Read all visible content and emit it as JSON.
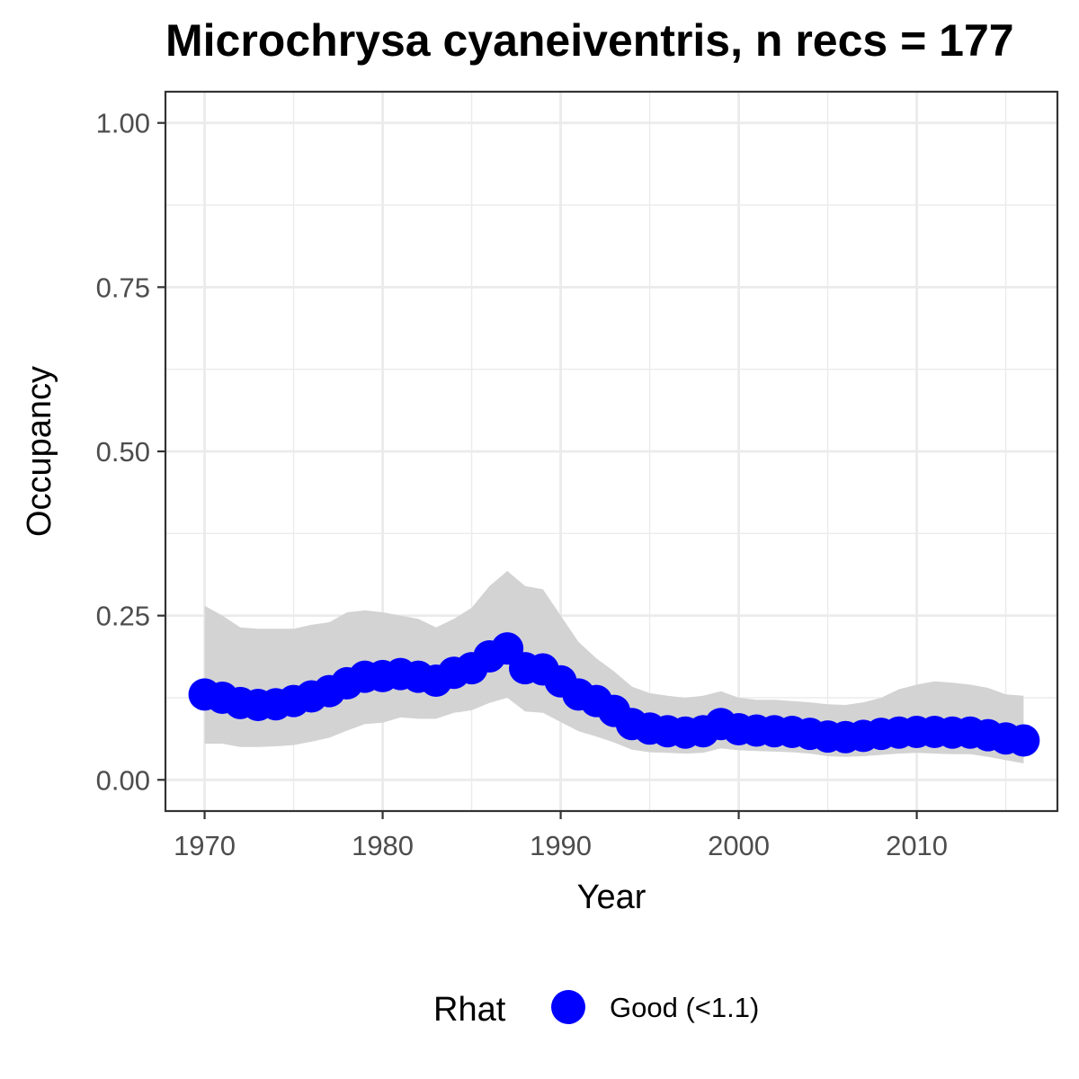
{
  "chart_data": {
    "type": "line",
    "title": "Microchrysa cyaneiventris, n recs = 177",
    "xlabel": "Year",
    "ylabel": "Occupancy",
    "xlim": [
      1967.8,
      2017.9
    ],
    "ylim": [
      -0.0475,
      1.0475
    ],
    "x_ticks": [
      1970,
      1980,
      1990,
      2000,
      2010
    ],
    "x_tick_labels": [
      "1970",
      "1980",
      "1990",
      "2000",
      "2010"
    ],
    "y_ticks": [
      0,
      0.25,
      0.5,
      0.75,
      1.0
    ],
    "y_tick_labels": [
      "0.00",
      "0.25",
      "0.50",
      "0.75",
      "1.00"
    ],
    "grid": true,
    "legend": {
      "title": "Rhat",
      "position": "bottom",
      "items": [
        {
          "label": "Good (<1.1)",
          "color": "#0000ff"
        }
      ]
    },
    "colors": {
      "points": "#0000ff",
      "ribbon": "#d3d3d3",
      "grid": "#ebebeb",
      "border": "#333333"
    },
    "x": [
      1970,
      1971,
      1972,
      1973,
      1974,
      1975,
      1976,
      1977,
      1978,
      1979,
      1980,
      1981,
      1982,
      1983,
      1984,
      1985,
      1986,
      1987,
      1988,
      1989,
      1990,
      1991,
      1992,
      1993,
      1994,
      1995,
      1996,
      1997,
      1998,
      1999,
      2000,
      2001,
      2002,
      2003,
      2004,
      2005,
      2006,
      2007,
      2008,
      2009,
      2010,
      2011,
      2012,
      2013,
      2014,
      2015,
      2016
    ],
    "series": [
      {
        "values": [
          0.13,
          0.125,
          0.117,
          0.114,
          0.115,
          0.12,
          0.127,
          0.135,
          0.147,
          0.157,
          0.158,
          0.161,
          0.157,
          0.151,
          0.163,
          0.17,
          0.188,
          0.2,
          0.17,
          0.168,
          0.15,
          0.13,
          0.12,
          0.105,
          0.085,
          0.078,
          0.074,
          0.072,
          0.074,
          0.085,
          0.077,
          0.075,
          0.074,
          0.073,
          0.07,
          0.066,
          0.065,
          0.067,
          0.07,
          0.072,
          0.073,
          0.073,
          0.072,
          0.072,
          0.068,
          0.063,
          0.06
        ],
        "lower": [
          0.055,
          0.055,
          0.05,
          0.05,
          0.051,
          0.053,
          0.058,
          0.064,
          0.075,
          0.085,
          0.087,
          0.095,
          0.093,
          0.093,
          0.102,
          0.106,
          0.117,
          0.125,
          0.104,
          0.102,
          0.088,
          0.074,
          0.066,
          0.057,
          0.046,
          0.042,
          0.041,
          0.04,
          0.041,
          0.048,
          0.045,
          0.044,
          0.043,
          0.042,
          0.04,
          0.036,
          0.035,
          0.036,
          0.038,
          0.04,
          0.041,
          0.04,
          0.039,
          0.039,
          0.035,
          0.03,
          0.025
        ],
        "upper": [
          0.265,
          0.25,
          0.232,
          0.23,
          0.23,
          0.23,
          0.236,
          0.24,
          0.255,
          0.258,
          0.255,
          0.25,
          0.245,
          0.232,
          0.245,
          0.262,
          0.295,
          0.318,
          0.295,
          0.29,
          0.25,
          0.21,
          0.185,
          0.165,
          0.142,
          0.132,
          0.128,
          0.125,
          0.128,
          0.135,
          0.125,
          0.122,
          0.122,
          0.12,
          0.118,
          0.115,
          0.114,
          0.118,
          0.125,
          0.138,
          0.145,
          0.15,
          0.148,
          0.145,
          0.14,
          0.13,
          0.128
        ]
      }
    ]
  }
}
